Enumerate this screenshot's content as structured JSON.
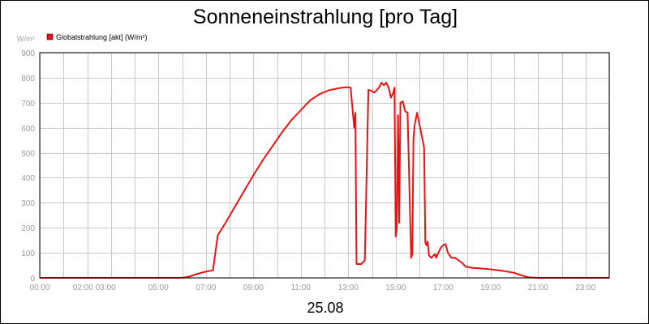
{
  "chart_data": {
    "type": "line",
    "title": "Sonneneinstrahlung [pro Tag]",
    "y_unit_label": "W/m²",
    "date_label": "25.08",
    "ylim": [
      0,
      900
    ],
    "y_ticks": [
      "0",
      "100",
      "200",
      "300",
      "400",
      "500",
      "600",
      "700",
      "800",
      "900"
    ],
    "xlim": [
      0,
      24
    ],
    "x_ticks": [
      {
        "t": 0,
        "label": "00:00"
      },
      {
        "t": 2.3,
        "label": "02:00 03:00"
      },
      {
        "t": 5,
        "label": "05:00"
      },
      {
        "t": 7,
        "label": "07:00"
      },
      {
        "t": 9,
        "label": "09:00"
      },
      {
        "t": 11,
        "label": "11:00"
      },
      {
        "t": 13,
        "label": "13:00"
      },
      {
        "t": 15,
        "label": "15:00"
      },
      {
        "t": 17,
        "label": "17:00"
      },
      {
        "t": 19,
        "label": "19:00"
      },
      {
        "t": 21,
        "label": "21:00"
      },
      {
        "t": 23,
        "label": "23:00"
      }
    ],
    "grid": true,
    "legend_position": "top-left",
    "series": [
      {
        "name": "Globalstrahlung [akt] (W/m²)",
        "color": "#ee1111",
        "x": [
          0,
          6.0,
          6.3,
          6.6,
          7.0,
          7.3,
          7.5,
          7.8,
          8.2,
          8.6,
          9.0,
          9.4,
          9.8,
          10.2,
          10.6,
          11.0,
          11.4,
          11.8,
          12.2,
          12.6,
          12.9,
          13.1,
          13.25,
          13.3,
          13.35,
          13.4,
          13.45,
          13.55,
          13.7,
          13.85,
          13.9,
          14.1,
          14.3,
          14.4,
          14.5,
          14.6,
          14.7,
          14.8,
          14.9,
          14.95,
          15.0,
          15.05,
          15.1,
          15.15,
          15.2,
          15.3,
          15.4,
          15.5,
          15.65,
          15.7,
          15.75,
          15.8,
          15.9,
          16.05,
          16.2,
          16.25,
          16.3,
          16.35,
          16.4,
          16.5,
          16.6,
          16.65,
          16.7,
          16.8,
          16.9,
          17.0,
          17.1,
          17.2,
          17.35,
          17.5,
          17.65,
          17.8,
          17.95,
          18.2,
          18.5,
          19.0,
          19.5,
          20.0,
          20.3,
          20.6,
          21.0,
          22.0,
          24.0
        ],
        "y": [
          0,
          0,
          5,
          15,
          25,
          30,
          170,
          215,
          280,
          345,
          410,
          470,
          525,
          580,
          630,
          670,
          710,
          735,
          750,
          758,
          762,
          760,
          600,
          660,
          55,
          55,
          55,
          55,
          70,
          750,
          750,
          740,
          760,
          780,
          770,
          780,
          760,
          720,
          740,
          760,
          165,
          200,
          650,
          220,
          700,
          705,
          665,
          660,
          80,
          95,
          560,
          610,
          660,
          590,
          520,
          140,
          130,
          145,
          90,
          80,
          90,
          95,
          80,
          100,
          120,
          130,
          135,
          100,
          80,
          80,
          70,
          60,
          45,
          40,
          38,
          34,
          28,
          20,
          10,
          2,
          0,
          0,
          0
        ]
      }
    ]
  }
}
